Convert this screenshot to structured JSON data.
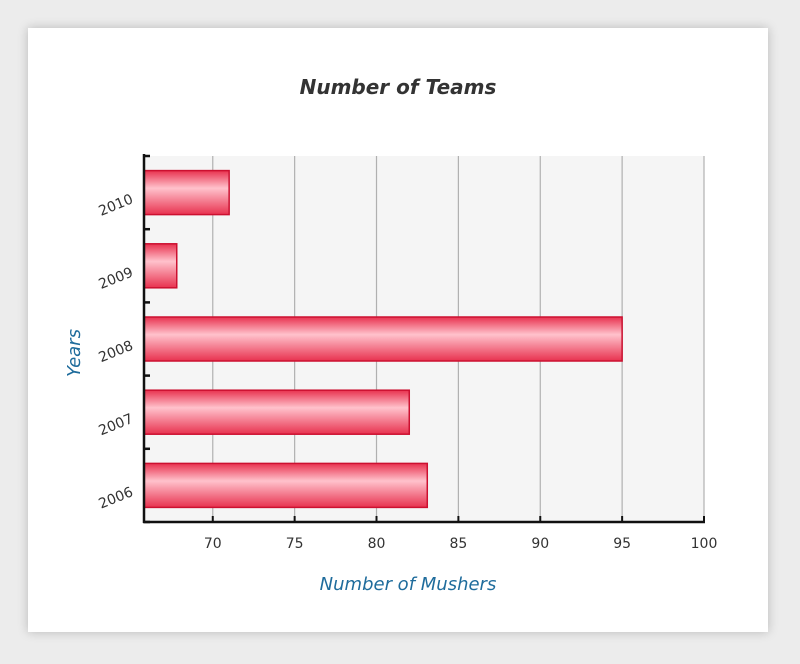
{
  "chart_data": {
    "type": "bar",
    "orientation": "horizontal",
    "title": "Number of Teams",
    "xlabel": "Number of Mushers",
    "ylabel": "Years",
    "categories": [
      "2010",
      "2009",
      "2008",
      "2007",
      "2006"
    ],
    "values": [
      71,
      67.8,
      95,
      82,
      83.1
    ],
    "xlim": [
      65.8,
      100
    ],
    "xticks": [
      70,
      75,
      80,
      85,
      90,
      95,
      100
    ],
    "grid": true,
    "colors": {
      "bar_fill_light": "#ffc2cc",
      "bar_fill_mid": "#ff6f84",
      "bar_fill_dark": "#e8324f",
      "bar_stroke": "#cc1030",
      "plot_background": "#f5f5f5",
      "grid": "#b0b0b0",
      "title": "#333333",
      "axis_title": "#1f6c9c"
    }
  }
}
